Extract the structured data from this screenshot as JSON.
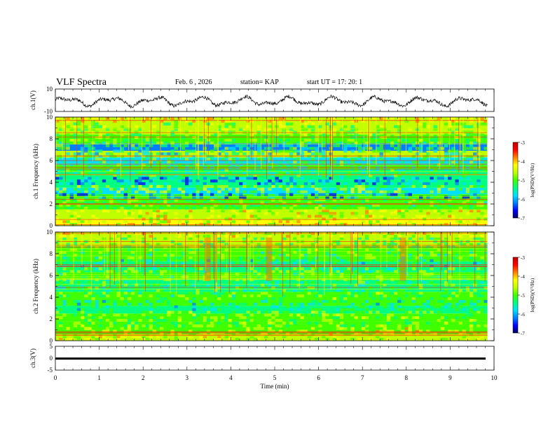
{
  "header": {
    "title": "VLF Spectra",
    "date": "Feb. 6 , 2026",
    "station": "station= KAP",
    "start_ut": "start UT =   17: 20: 1"
  },
  "colors": {
    "spectrum": [
      "#000060",
      "#0000ff",
      "#0080ff",
      "#00e0ff",
      "#00ff80",
      "#40ff00",
      "#c0ff00",
      "#ffff00",
      "#ff8000",
      "#ff0000",
      "#c00000"
    ]
  },
  "chart_data": [
    {
      "id": "ch1-waveform",
      "type": "line",
      "ylabel": "ch.1(V)",
      "ylim": [
        -10,
        10
      ],
      "ytick_labels": [
        "10",
        "-10"
      ],
      "xlim": [
        0,
        10
      ],
      "description_values": "noisy waveform oscillating roughly between -6 V and +4 V around -1 V"
    },
    {
      "id": "ch1-spectrogram",
      "type": "heatmap",
      "ylabel": "ch.1 Frequency (kHz)",
      "ylim": [
        0,
        10
      ],
      "ytick_labels": [
        "0",
        "2",
        "4",
        "6",
        "8",
        "10"
      ],
      "xlim": [
        0,
        9.85
      ],
      "colorbar": {
        "label": "log(PSD)(V²/Hz)",
        "range": [
          -7,
          -3
        ],
        "tick_labels": [
          "-3",
          "-4",
          "-5",
          "-6",
          "-7"
        ]
      },
      "bands": [
        {
          "kHz": [
            0,
            0.6
          ],
          "level": 0.68
        },
        {
          "kHz": [
            0.6,
            1.5
          ],
          "level": 0.55
        },
        {
          "kHz": [
            1.5,
            2.2
          ],
          "level": 0.52
        },
        {
          "kHz": [
            2.2,
            2.9
          ],
          "level": 0.46
        },
        {
          "kHz": [
            2.9,
            3.5
          ],
          "level": 0.36
        },
        {
          "kHz": [
            3.5,
            4.2
          ],
          "level": 0.45
        },
        {
          "kHz": [
            4.2,
            5.2
          ],
          "level": 0.42
        },
        {
          "kHz": [
            5.2,
            5.6
          ],
          "level": 0.48
        },
        {
          "kHz": [
            5.6,
            6.3
          ],
          "level": 0.28
        },
        {
          "kHz": [
            6.3,
            6.9
          ],
          "level": 0.55
        },
        {
          "kHz": [
            6.9,
            7.6
          ],
          "level": 0.26
        },
        {
          "kHz": [
            7.6,
            8.4
          ],
          "level": 0.5
        },
        {
          "kHz": [
            8.4,
            10
          ],
          "level": 0.62
        }
      ]
    },
    {
      "id": "ch2-spectrogram",
      "type": "heatmap",
      "ylabel": "ch.2 Frequency (kHz)",
      "ylim": [
        0,
        10
      ],
      "ytick_labels": [
        "0",
        "2",
        "4",
        "6",
        "8",
        "10"
      ],
      "xlim": [
        0,
        9.85
      ],
      "colorbar": {
        "label": "log(PSD)(V²/Hz)",
        "range": [
          -7,
          -3
        ],
        "tick_labels": [
          "-3",
          "-4",
          "-5",
          "-6",
          "-7"
        ]
      },
      "bands": [
        {
          "kHz": [
            0,
            0.6
          ],
          "level": 0.62
        },
        {
          "kHz": [
            0.6,
            1.8
          ],
          "level": 0.5
        },
        {
          "kHz": [
            1.8,
            2.5
          ],
          "level": 0.48
        },
        {
          "kHz": [
            2.5,
            3.2
          ],
          "level": 0.4
        },
        {
          "kHz": [
            3.2,
            4.5
          ],
          "level": 0.48
        },
        {
          "kHz": [
            4.5,
            5.6
          ],
          "level": 0.45
        },
        {
          "kHz": [
            5.6,
            6.3
          ],
          "level": 0.5
        },
        {
          "kHz": [
            6.3,
            7.3
          ],
          "level": 0.4
        },
        {
          "kHz": [
            7.3,
            8.7
          ],
          "level": 0.52
        },
        {
          "kHz": [
            8.7,
            10
          ],
          "level": 0.6
        }
      ],
      "notable_events_min": [
        3.4,
        4.8,
        7.85
      ]
    },
    {
      "id": "ch3-waveform",
      "type": "line",
      "ylabel": "ch.3(V)",
      "ylim": [
        -5,
        5
      ],
      "ytick_labels": [
        "5",
        "0",
        "-5"
      ],
      "xlim": [
        0,
        10
      ],
      "xlabel": "Time (min)",
      "xtick_labels": [
        "0",
        "1",
        "2",
        "3",
        "4",
        "5",
        "6",
        "7",
        "8",
        "9",
        "10"
      ],
      "level_V": [
        -0.3,
        0.3
      ]
    }
  ]
}
